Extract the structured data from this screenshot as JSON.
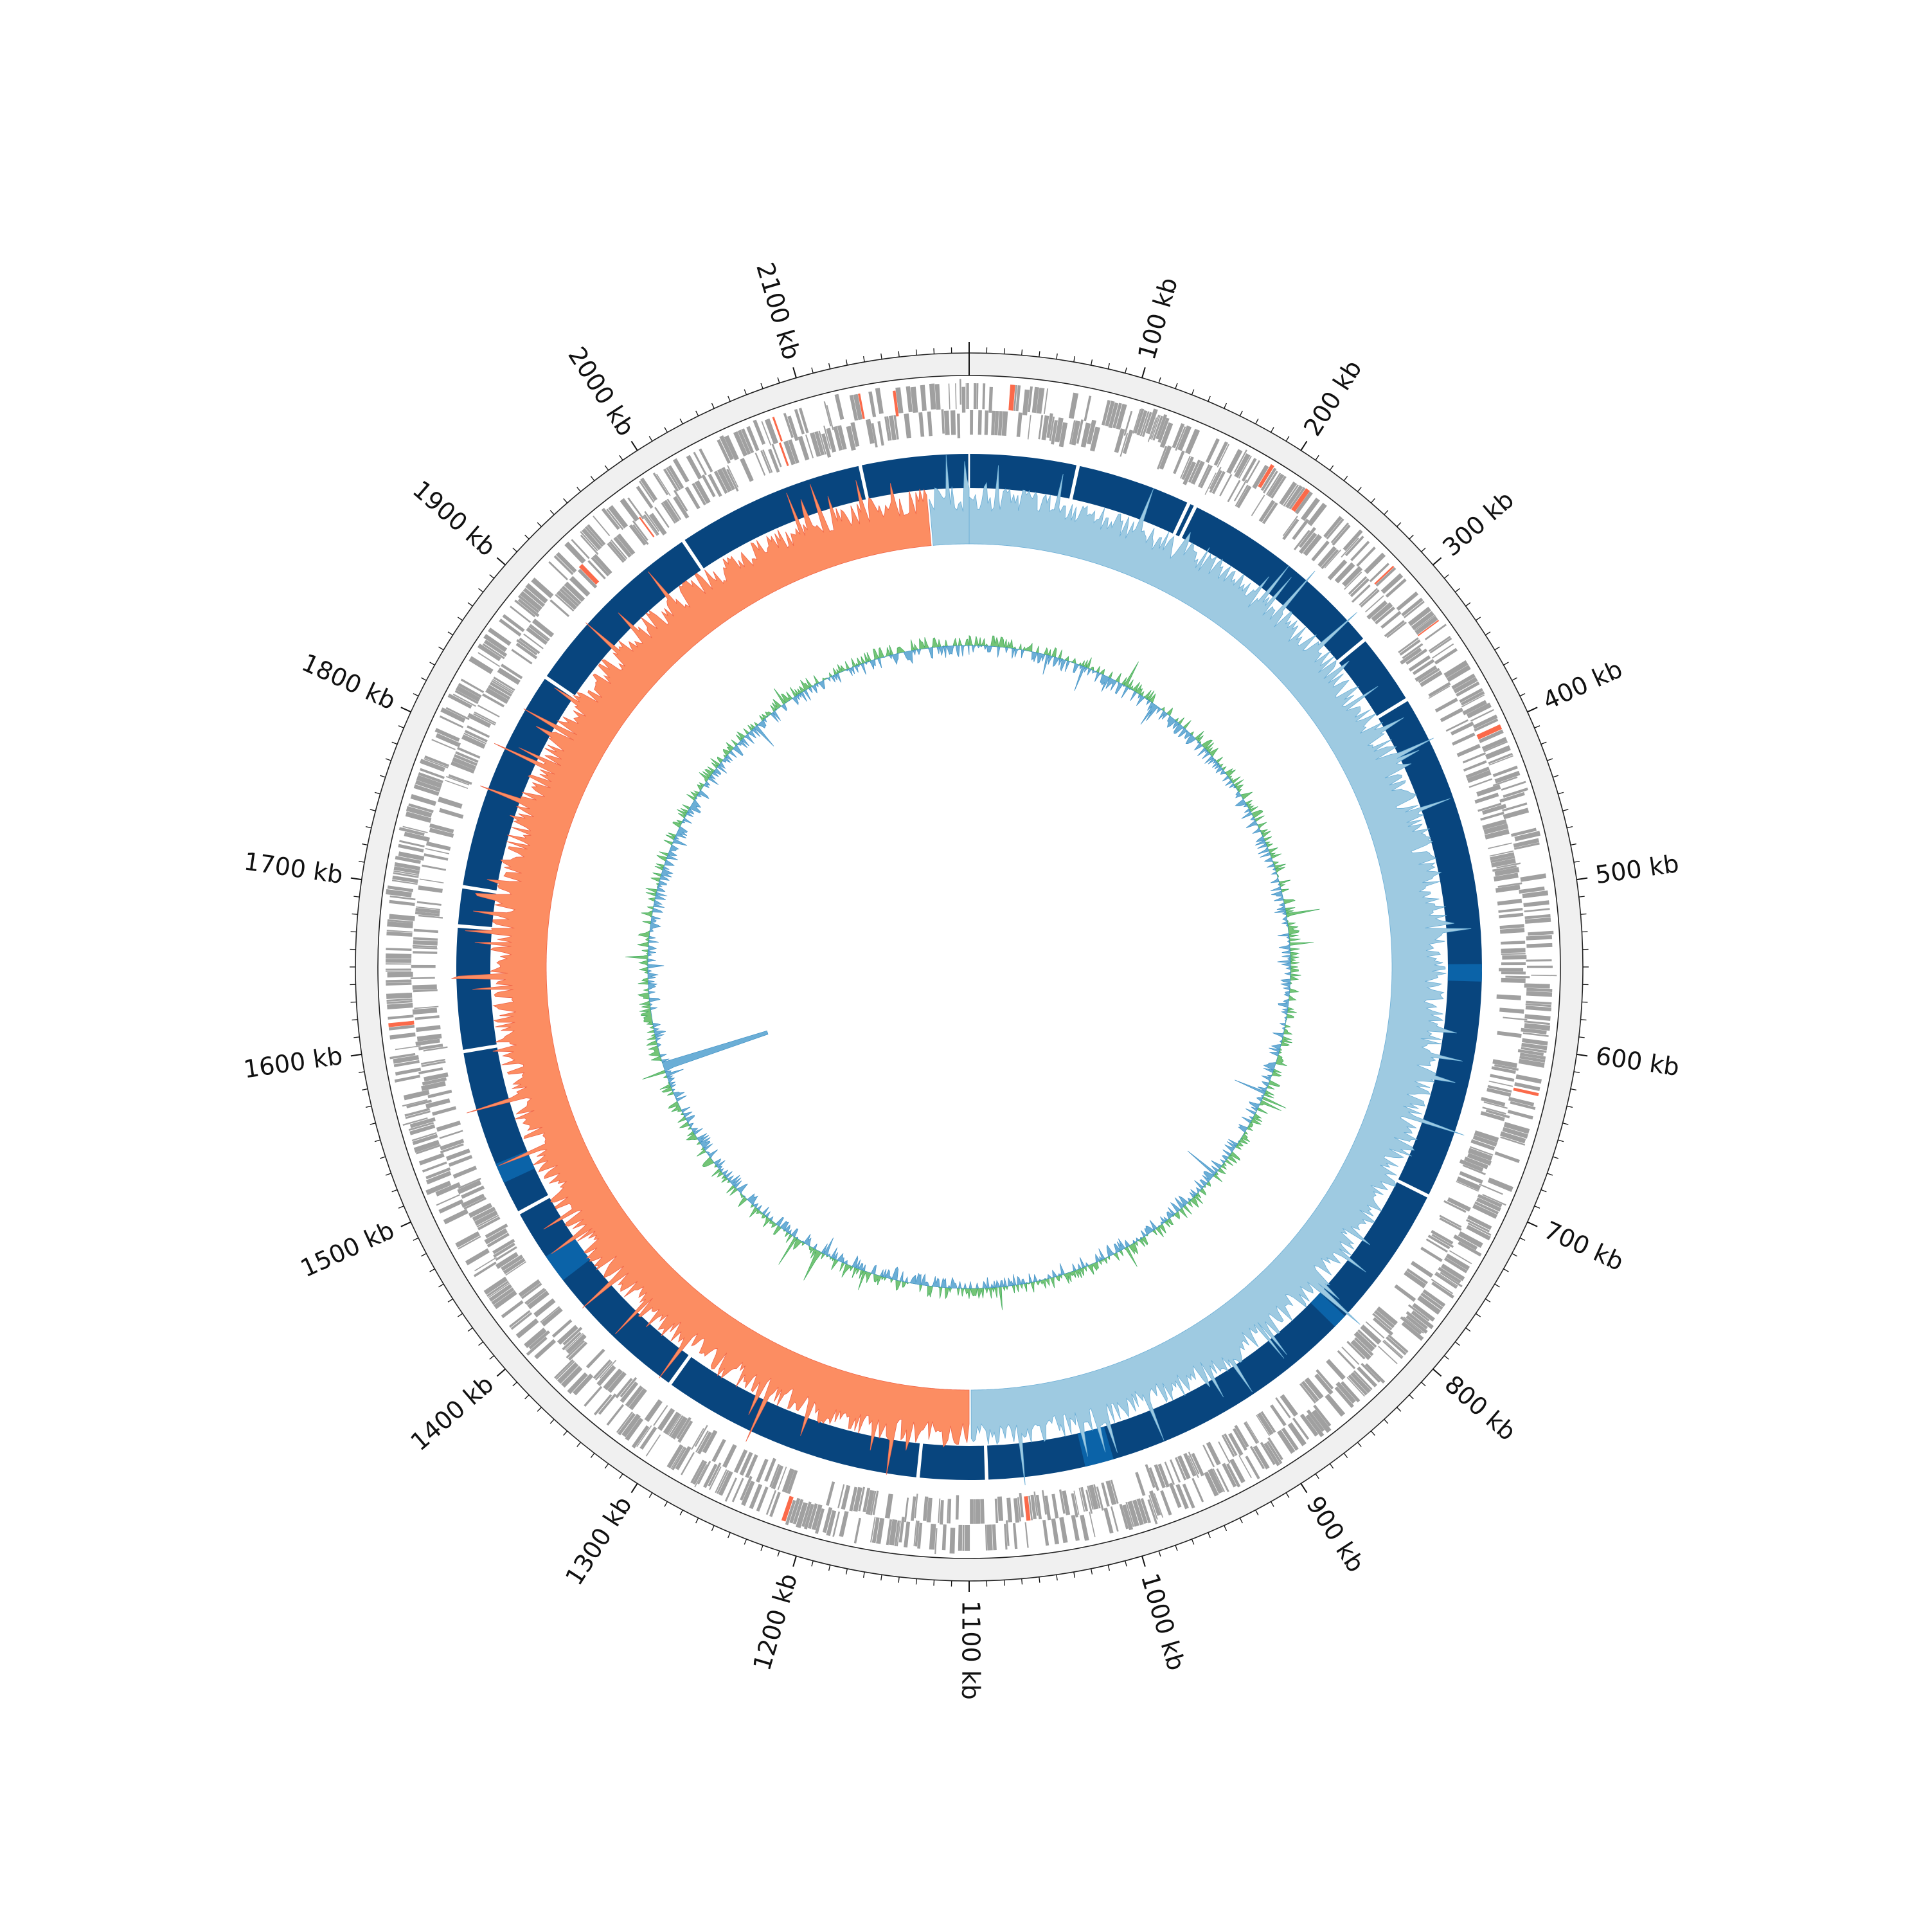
{
  "chart_data": {
    "type": "circular-genome-map",
    "genome_length_kb": 2200,
    "position_labels": [
      "100 kb",
      "200 kb",
      "300 kb",
      "400 kb",
      "500 kb",
      "600 kb",
      "700 kb",
      "800 kb",
      "900 kb",
      "1000 kb",
      "1100 kb",
      "1200 kb",
      "1300 kb",
      "1400 kb",
      "1500 kb",
      "1600 kb",
      "1700 kb",
      "1800 kb",
      "1900 kb",
      "2000 kb",
      "2100 kb"
    ],
    "label_positions_kb": [
      100,
      200,
      300,
      400,
      500,
      600,
      700,
      800,
      900,
      1000,
      1100,
      1200,
      1300,
      1400,
      1500,
      1600,
      1700,
      1800,
      1900,
      2000,
      2100
    ],
    "tick_interval_kb": 10,
    "colors": {
      "ideogram": "#f0f0f0",
      "genes": "#a0a0a0",
      "rna_genes": "#fb6a4a",
      "contigs": "#08457e",
      "contigs_alt": "#0b63a8",
      "gc_skew_positive": "#9ecae1",
      "gc_skew_negative": "#fc8d62",
      "gc_content_positive": "#74c476",
      "gc_content_negative": "#6baed6"
    },
    "contig_gaps_kb": [
      75,
      155,
      160,
      308,
      358,
      552,
      712,
      1088,
      1135,
      1318,
      1475,
      1592,
      1678,
      1705,
      1860,
      1993,
      2125
    ],
    "gc_skew_sign_change_kb": [
      1100,
      2170
    ],
    "gc_content_spike_kb": 1540
  }
}
